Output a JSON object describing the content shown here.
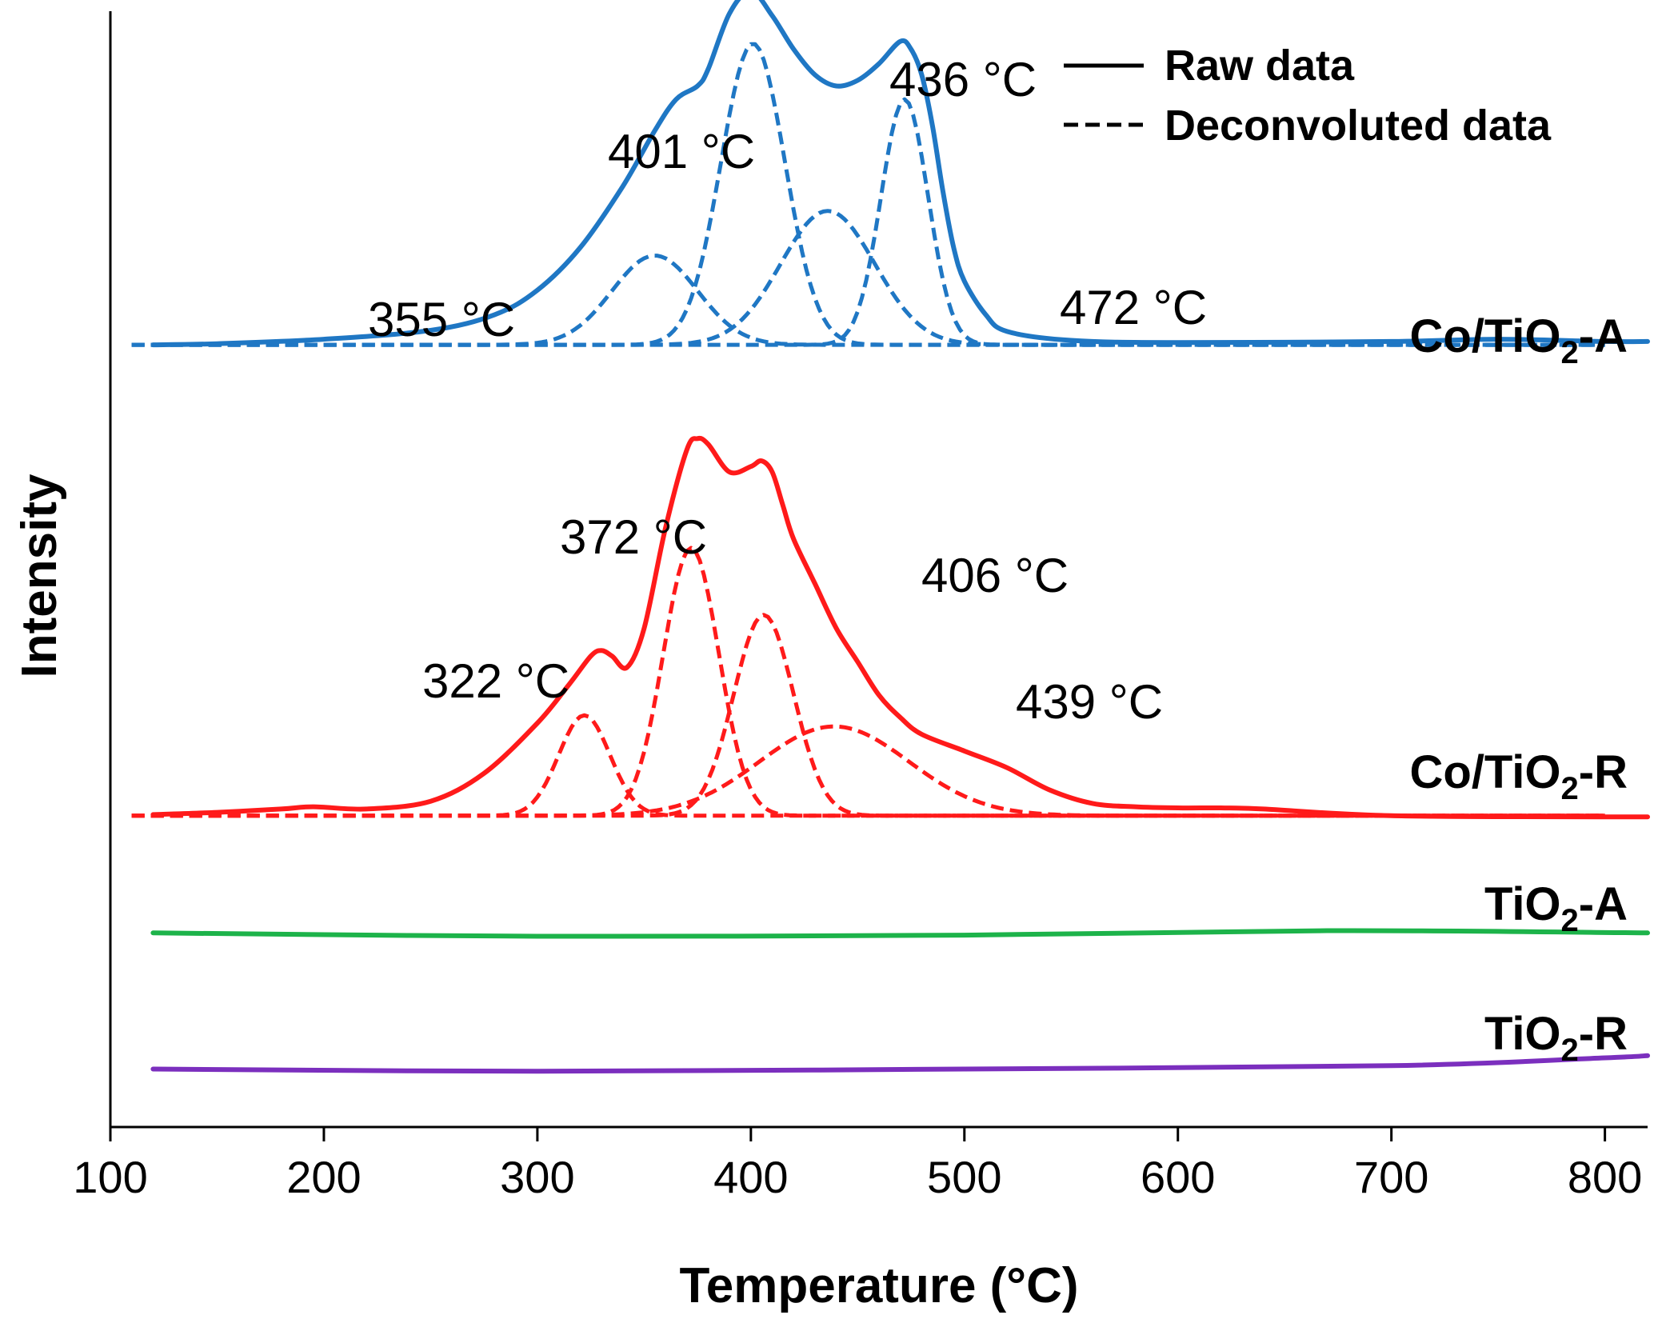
{
  "chart_data": {
    "type": "line",
    "xlabel": "Temperature (°C)",
    "ylabel": "Intensity",
    "xlim": [
      100,
      820
    ],
    "ylim": [
      0,
      1
    ],
    "x_ticks": [
      100,
      200,
      300,
      400,
      500,
      600,
      700,
      800
    ],
    "legend": {
      "placement": "top-right",
      "entries": [
        {
          "label": "Raw data",
          "style": "solid"
        },
        {
          "label": "Deconvoluted data",
          "style": "dashed"
        }
      ]
    },
    "series": [
      {
        "name": "Co/TiO2-A",
        "label_main": "Co/TiO",
        "label_sub": "2",
        "label_tail": "-A",
        "color": "#1f77c4",
        "offset": 0.698,
        "baseline_start": 0.003,
        "baseline_end": 0.003,
        "raw_x": [
          120,
          150,
          200,
          250,
          280,
          300,
          320,
          340,
          355,
          365,
          375,
          380,
          390,
          400,
          410,
          420,
          430,
          440,
          450,
          460,
          470,
          475,
          480,
          485,
          490,
          495,
          500,
          510,
          520,
          550,
          600,
          700,
          750,
          800,
          820
        ],
        "raw_y": [
          0.003,
          0.004,
          0.008,
          0.016,
          0.03,
          0.052,
          0.09,
          0.145,
          0.195,
          0.223,
          0.235,
          0.25,
          0.3,
          0.32,
          0.298,
          0.268,
          0.245,
          0.235,
          0.24,
          0.255,
          0.275,
          0.268,
          0.245,
          0.2,
          0.14,
          0.09,
          0.06,
          0.03,
          0.015,
          0.007,
          0.005,
          0.006,
          0.008,
          0.006,
          0.006
        ],
        "deconvoluted_peaks": [
          {
            "center": 355,
            "height": 0.08,
            "width": 20
          },
          {
            "center": 401,
            "height": 0.27,
            "width": 15
          },
          {
            "center": 436,
            "height": 0.12,
            "width": 22
          },
          {
            "center": 472,
            "height": 0.22,
            "width": 11
          }
        ],
        "peak_labels": [
          "355 °C",
          "401 °C",
          "436 °C",
          "472 °C"
        ]
      },
      {
        "name": "Co/TiO2-R",
        "label_main": "Co/TiO",
        "label_sub": "2",
        "label_tail": "-R",
        "color": "#ff1a1a",
        "offset": 0.277,
        "baseline_start": 0.002,
        "baseline_end": 0.002,
        "raw_x": [
          120,
          150,
          180,
          195,
          220,
          250,
          275,
          300,
          315,
          325,
          330,
          335,
          342,
          350,
          360,
          370,
          375,
          380,
          390,
          400,
          405,
          410,
          415,
          420,
          430,
          440,
          450,
          460,
          470,
          480,
          500,
          520,
          540,
          560,
          580,
          600,
          620,
          640,
          700,
          800,
          820
        ],
        "raw_y": [
          0.003,
          0.005,
          0.008,
          0.01,
          0.008,
          0.015,
          0.04,
          0.085,
          0.12,
          0.145,
          0.15,
          0.145,
          0.135,
          0.17,
          0.26,
          0.33,
          0.34,
          0.335,
          0.31,
          0.315,
          0.32,
          0.31,
          0.28,
          0.25,
          0.21,
          0.17,
          0.14,
          0.11,
          0.09,
          0.075,
          0.06,
          0.045,
          0.025,
          0.013,
          0.01,
          0.009,
          0.009,
          0.008,
          0.002,
          0.001,
          0.001
        ],
        "deconvoluted_peaks": [
          {
            "center": 322,
            "height": 0.09,
            "width": 12
          },
          {
            "center": 372,
            "height": 0.24,
            "width": 13
          },
          {
            "center": 406,
            "height": 0.18,
            "width": 14
          },
          {
            "center": 439,
            "height": 0.08,
            "width": 35
          }
        ],
        "peak_labels": [
          "322 °C",
          "372 °C",
          "406 °C",
          "439 °C"
        ]
      },
      {
        "name": "TiO2-A",
        "label_main": "TiO",
        "label_sub": "2",
        "label_tail": "-A",
        "color": "#1db34a",
        "offset": 0.0,
        "raw_x": [
          120,
          300,
          500,
          670,
          820
        ],
        "raw_y": [
          0.174,
          0.171,
          0.172,
          0.176,
          0.174
        ],
        "deconvoluted_peaks": [],
        "peak_labels": []
      },
      {
        "name": "TiO2-R",
        "label_main": "TiO",
        "label_sub": "2",
        "label_tail": "-R",
        "color": "#7b2fbe",
        "offset": 0.0,
        "raw_x": [
          120,
          300,
          500,
          700,
          800,
          820
        ],
        "raw_y": [
          0.052,
          0.05,
          0.052,
          0.055,
          0.062,
          0.064
        ],
        "deconvoluted_peaks": [],
        "peak_labels": []
      }
    ]
  }
}
